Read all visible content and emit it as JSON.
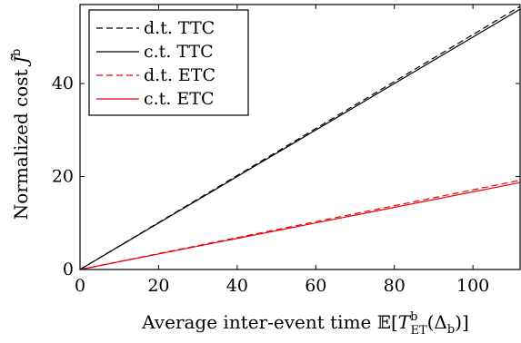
{
  "chart_data": {
    "type": "line",
    "xlabel": "Average inter-event time 𝔼[TᵇET(Δb)]",
    "ylabel": "Normalized cost J̃ᵇ",
    "xlim": [
      0,
      112
    ],
    "ylim": [
      0,
      57
    ],
    "x_ticks": [
      "0",
      "20",
      "40",
      "60",
      "80",
      "100"
    ],
    "y_ticks": [
      "0",
      "20",
      "40"
    ],
    "legend_position": "top-left",
    "grid": false,
    "series": [
      {
        "name": "d.t. TTC",
        "style": "dashed",
        "color": "#000000",
        "x": [
          0,
          112
        ],
        "y": [
          0,
          56.6
        ]
      },
      {
        "name": "c.t. TTC",
        "style": "solid",
        "color": "#000000",
        "x": [
          0,
          112
        ],
        "y": [
          0,
          56.0
        ]
      },
      {
        "name": "d.t. ETC",
        "style": "dashed",
        "color": "#e8000b",
        "x": [
          0,
          112
        ],
        "y": [
          0,
          19.2
        ]
      },
      {
        "name": "c.t. ETC",
        "style": "solid",
        "color": "#e8000b",
        "x": [
          0,
          112
        ],
        "y": [
          0,
          18.7
        ]
      }
    ]
  }
}
